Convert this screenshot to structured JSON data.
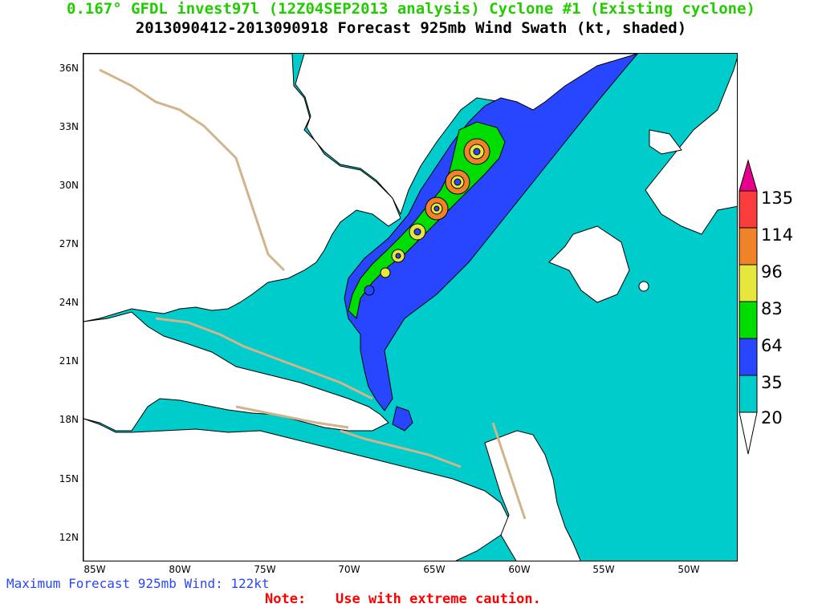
{
  "title": {
    "line1": "0.167° GFDL invest97l (12Z04SEP2013 analysis) Cyclone #1 (Existing cyclone)",
    "line2": "2013090412-2013090918 Forecast 925mb Wind Swath (kt, shaded)",
    "line1_color": "#22cc00",
    "line2_color": "#000000"
  },
  "map": {
    "lat_labels": [
      "36N",
      "33N",
      "30N",
      "27N",
      "24N",
      "21N",
      "18N",
      "15N",
      "12N"
    ],
    "lon_labels": [
      "85W",
      "80W",
      "75W",
      "70W",
      "65W",
      "60W",
      "55W",
      "50W"
    ],
    "land_color": "#ffffff",
    "coast_color": "#d2b48c",
    "storm_track_positions_lonlat": [
      [
        -62.4,
        31.6
      ],
      [
        -63.5,
        30.3
      ],
      [
        -64.6,
        28.9
      ],
      [
        -65.8,
        27.6
      ],
      [
        -66.9,
        26.2
      ],
      [
        -67.6,
        25.3
      ],
      [
        -68.6,
        24.2
      ]
    ]
  },
  "colorbar": {
    "labels": [
      "135",
      "114",
      "96",
      "83",
      "64",
      "35",
      "20"
    ],
    "colors": {
      "c20": "#00cccc",
      "c35": "#2846ff",
      "c64": "#00dd00",
      "c83": "#e6e63c",
      "c96": "#f08228",
      "c114": "#fa3c3c",
      "c135": "#e6008c"
    }
  },
  "footer": {
    "max_wind": "Maximum Forecast 925mb Wind: 122kt",
    "note_label": "Note:",
    "note_text": "Use with extreme caution.",
    "max_wind_color": "#2846ff",
    "note_color": "#ff0000"
  }
}
